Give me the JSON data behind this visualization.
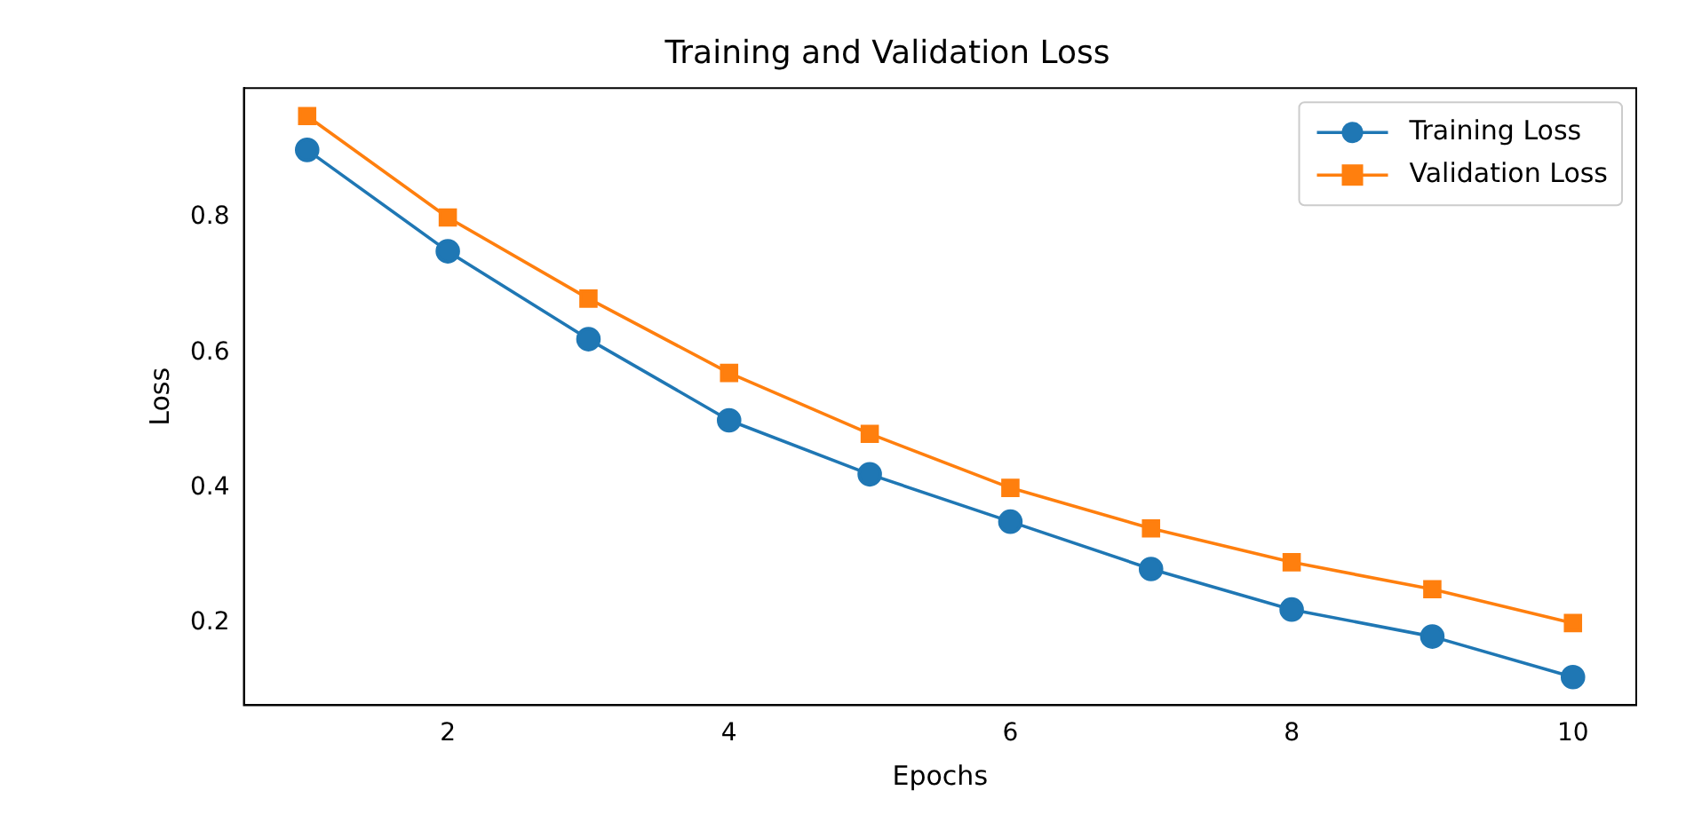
{
  "chart_data": {
    "type": "line",
    "title": "Training and Validation Loss",
    "xlabel": "Epochs",
    "ylabel": "Loss",
    "x": [
      1,
      2,
      3,
      4,
      5,
      6,
      7,
      8,
      9,
      10
    ],
    "series": [
      {
        "name": "Training Loss",
        "color": "#1f77b4",
        "marker": "circle",
        "values": [
          0.9,
          0.75,
          0.62,
          0.5,
          0.42,
          0.35,
          0.28,
          0.22,
          0.18,
          0.12
        ]
      },
      {
        "name": "Validation Loss",
        "color": "#ff7f0e",
        "marker": "square",
        "values": [
          0.95,
          0.8,
          0.68,
          0.57,
          0.48,
          0.4,
          0.34,
          0.29,
          0.25,
          0.2
        ]
      }
    ],
    "xlim": [
      0.55,
      10.45
    ],
    "xticks": [
      2,
      4,
      6,
      8,
      10
    ],
    "ylim": [
      0.0785,
      0.9915
    ],
    "yticks": [
      0.2,
      0.4,
      0.6,
      0.8
    ],
    "grid": false,
    "legend": "top right",
    "line_style": "solid"
  }
}
